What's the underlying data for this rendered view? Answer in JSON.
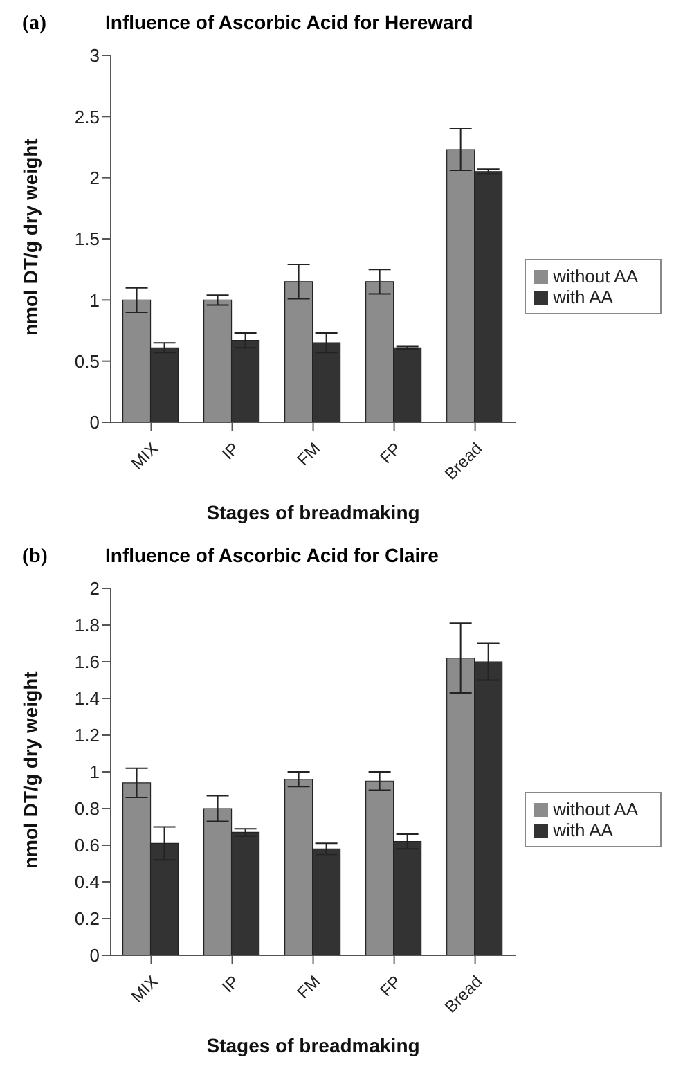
{
  "chart_data": [
    {
      "type": "bar",
      "title": "Influence of Ascorbic Acid for Hereward",
      "xlabel": "Stages of breadmaking",
      "ylabel": "nmol DT/g dry weight",
      "annotations": [
        "(a)"
      ],
      "categories": [
        "MIX",
        "IP",
        "FM",
        "FP",
        "Bread"
      ],
      "series": [
        {
          "name": "without AA",
          "color": "#8c8c8c",
          "values": [
            1.0,
            1.0,
            1.15,
            1.15,
            2.23
          ],
          "errors": [
            0.1,
            0.04,
            0.14,
            0.1,
            0.17
          ]
        },
        {
          "name": "with AA",
          "color": "#333333",
          "values": [
            0.61,
            0.67,
            0.65,
            0.61,
            2.05
          ],
          "errors": [
            0.04,
            0.06,
            0.08,
            0.01,
            0.02
          ]
        }
      ],
      "ylim": [
        0,
        3
      ],
      "yticks": [
        0,
        0.5,
        1,
        1.5,
        2,
        2.5,
        3
      ],
      "grid": false,
      "legend": "right"
    },
    {
      "type": "bar",
      "title": "Influence of Ascorbic Acid for Claire",
      "xlabel": "Stages of breadmaking",
      "ylabel": "nmol DT/g dry weight",
      "annotations": [
        "(b)"
      ],
      "categories": [
        "MIX",
        "IP",
        "FM",
        "FP",
        "Bread"
      ],
      "series": [
        {
          "name": "without AA",
          "color": "#8c8c8c",
          "values": [
            0.94,
            0.8,
            0.96,
            0.95,
            1.62
          ],
          "errors": [
            0.08,
            0.07,
            0.04,
            0.05,
            0.19
          ]
        },
        {
          "name": "with AA",
          "color": "#333333",
          "values": [
            0.61,
            0.67,
            0.58,
            0.62,
            1.6
          ],
          "errors": [
            0.09,
            0.02,
            0.03,
            0.04,
            0.1
          ]
        }
      ],
      "ylim": [
        0,
        2
      ],
      "yticks": [
        0,
        0.2,
        0.4,
        0.6,
        0.8,
        1,
        1.2,
        1.4,
        1.6,
        1.8,
        2
      ],
      "grid": false,
      "legend": "right"
    }
  ]
}
